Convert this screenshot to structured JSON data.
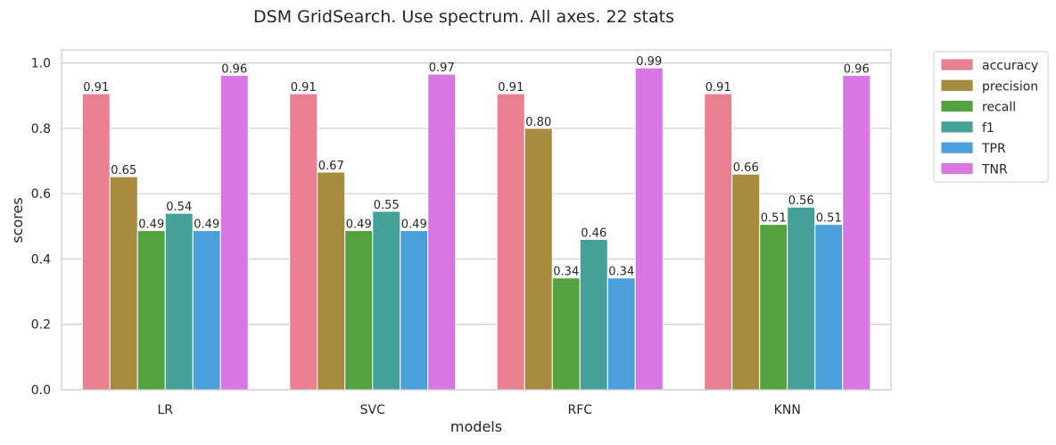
{
  "chart_data": {
    "type": "bar",
    "title": "DSM GridSearch. Use spectrum. All axes. 22 stats",
    "xlabel": "models",
    "ylabel": "scores",
    "categories": [
      "LR",
      "SVC",
      "RFC",
      "KNN"
    ],
    "ylim": [
      0,
      1.04
    ],
    "yticks": [
      "0.0",
      "0.2",
      "0.4",
      "0.6",
      "0.8",
      "1.0"
    ],
    "grid": true,
    "legend_position": "outside-top-right",
    "series": [
      {
        "name": "accuracy",
        "color": "#e8808f",
        "values": [
          0.906,
          0.906,
          0.906,
          0.906
        ],
        "labels": [
          "0.91",
          "0.91",
          "0.91",
          "0.91"
        ]
      },
      {
        "name": "precision",
        "color": "#a88a3e",
        "values": [
          0.652,
          0.666,
          0.8,
          0.66
        ],
        "labels": [
          "0.65",
          "0.67",
          "0.80",
          "0.66"
        ]
      },
      {
        "name": "recall",
        "color": "#53a23f",
        "values": [
          0.487,
          0.487,
          0.342,
          0.506
        ],
        "labels": [
          "0.49",
          "0.49",
          "0.34",
          "0.51"
        ]
      },
      {
        "name": "f1",
        "color": "#45a09a",
        "values": [
          0.54,
          0.546,
          0.46,
          0.559
        ],
        "labels": [
          "0.54",
          "0.55",
          "0.46",
          "0.56"
        ]
      },
      {
        "name": "TPR",
        "color": "#4ba0dc",
        "values": [
          0.487,
          0.487,
          0.342,
          0.506
        ],
        "labels": [
          "0.49",
          "0.49",
          "0.34",
          "0.51"
        ]
      },
      {
        "name": "TNR",
        "color": "#d876e4",
        "values": [
          0.962,
          0.966,
          0.985,
          0.962
        ],
        "labels": [
          "0.96",
          "0.97",
          "0.99",
          "0.96"
        ]
      }
    ]
  }
}
